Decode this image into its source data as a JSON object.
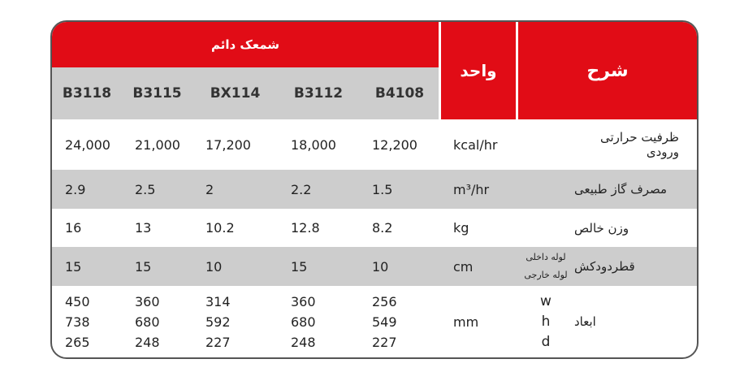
{
  "header": {
    "group": "شمعک دائم",
    "unit": "واحد",
    "desc": "شرح"
  },
  "models": [
    "B3118",
    "B3115",
    "BX114",
    "B3112",
    "B4108"
  ],
  "rows": [
    {
      "desc": "ظرفیت حرارتی ورودی",
      "unit": "kcal/hr",
      "values": [
        "24,000",
        "21,000",
        "17,200",
        "18,000",
        "12,200"
      ]
    },
    {
      "desc": "مصرف گاز طبیعی",
      "unit": "m³/hr",
      "values": [
        "2.9",
        "2.5",
        "2",
        "2.2",
        "1.5"
      ]
    },
    {
      "desc": "وزن خالص",
      "unit": "kg",
      "values": [
        "16",
        "13",
        "10.2",
        "12.8",
        "8.2"
      ]
    },
    {
      "desc": "قطردودکش",
      "unit": "cm",
      "sub": [
        "لوله داخلی",
        "لوله خارجی"
      ],
      "values": [
        "15",
        "15",
        "10",
        "15",
        "10"
      ]
    },
    {
      "desc": "ابعاد",
      "unit": "mm",
      "sub": [
        "w",
        "h",
        "d"
      ],
      "values": [
        [
          "450",
          "738",
          "265"
        ],
        [
          "360",
          "680",
          "248"
        ],
        [
          "314",
          "592",
          "227"
        ],
        [
          "360",
          "680",
          "248"
        ],
        [
          "256",
          "549",
          "227"
        ]
      ]
    }
  ],
  "colors": {
    "accent": "#e10c16",
    "band": "#cdcdcd"
  }
}
